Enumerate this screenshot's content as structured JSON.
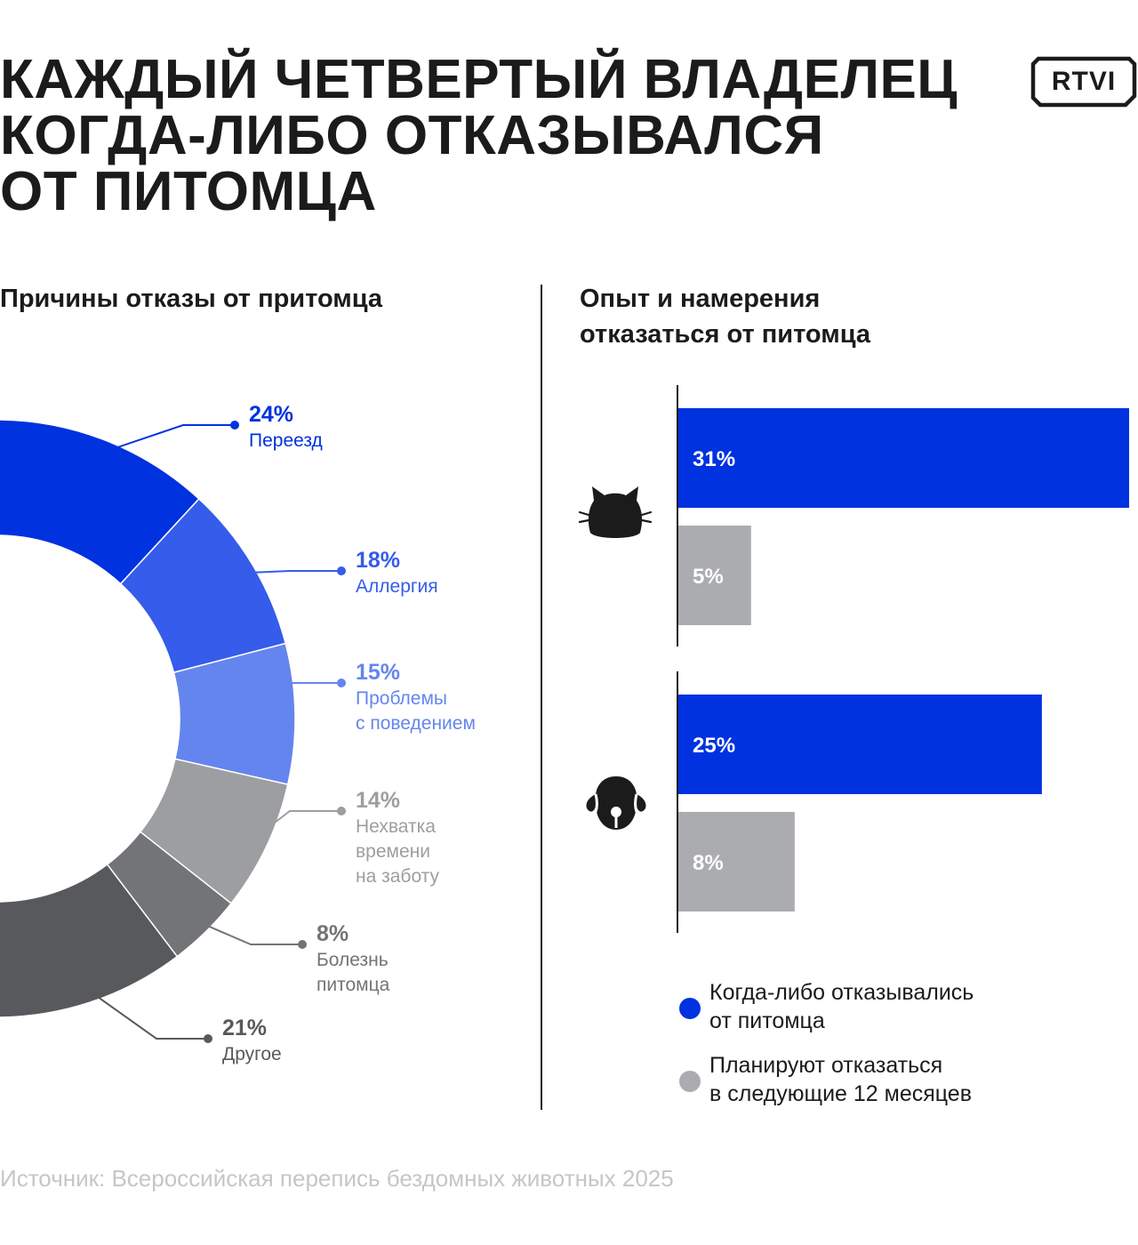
{
  "title_lines": [
    "КАЖДЫЙ ЧЕТВЕРТЫЙ ВЛАДЕЛЕЦ",
    "КОГДА-ЛИБО ОТКАЗЫВАЛСЯ",
    "ОТ ПИТОМЦА"
  ],
  "logo_text": "RTVI",
  "source": "Источник: Всероссийская перепись бездомных животных 2025",
  "colors": {
    "blue": "#0032e0",
    "blue_mid": "#355cea",
    "blue_light": "#6585ee",
    "gray_light": "#9d9ea2",
    "gray_mid": "#737477",
    "gray_dark": "#58595c",
    "bar_gray": "#abacb0"
  },
  "chart_data": [
    {
      "type": "pie",
      "variant": "donut",
      "title": "Причины отказы от притомца",
      "slices": [
        {
          "value": 24,
          "value_label": "24%",
          "label": "Переезд",
          "color": "#0032e0"
        },
        {
          "value": 18,
          "value_label": "18%",
          "label": "Аллергия",
          "color": "#355cea"
        },
        {
          "value": 15,
          "value_label": "15%",
          "label": "Проблемы\nс поведением",
          "color": "#6585ee"
        },
        {
          "value": 14,
          "value_label": "14%",
          "label": "Нехватка\nвремени\nна заботу",
          "color": "#9d9ea2"
        },
        {
          "value": 8,
          "value_label": "8%",
          "label": "Болезнь\nпитомца",
          "color": "#737477"
        },
        {
          "value": 21,
          "value_label": "21%",
          "label": "Другое",
          "color": "#58595c"
        }
      ]
    },
    {
      "type": "bar",
      "orientation": "horizontal",
      "title": "Опыт и намерения\nотказаться от питомца",
      "categories": [
        "cat-icon",
        "dog-icon"
      ],
      "series": [
        {
          "name": "Когда-либо отказывались\nот питомца",
          "color": "#0032e0",
          "values": [
            31,
            25
          ],
          "labels": [
            "31%",
            "25%"
          ]
        },
        {
          "name": "Планируют отказаться\nв следующие 12 месяцев",
          "color": "#abacb0",
          "values": [
            5,
            8
          ],
          "labels": [
            "5%",
            "8%"
          ]
        }
      ]
    }
  ]
}
